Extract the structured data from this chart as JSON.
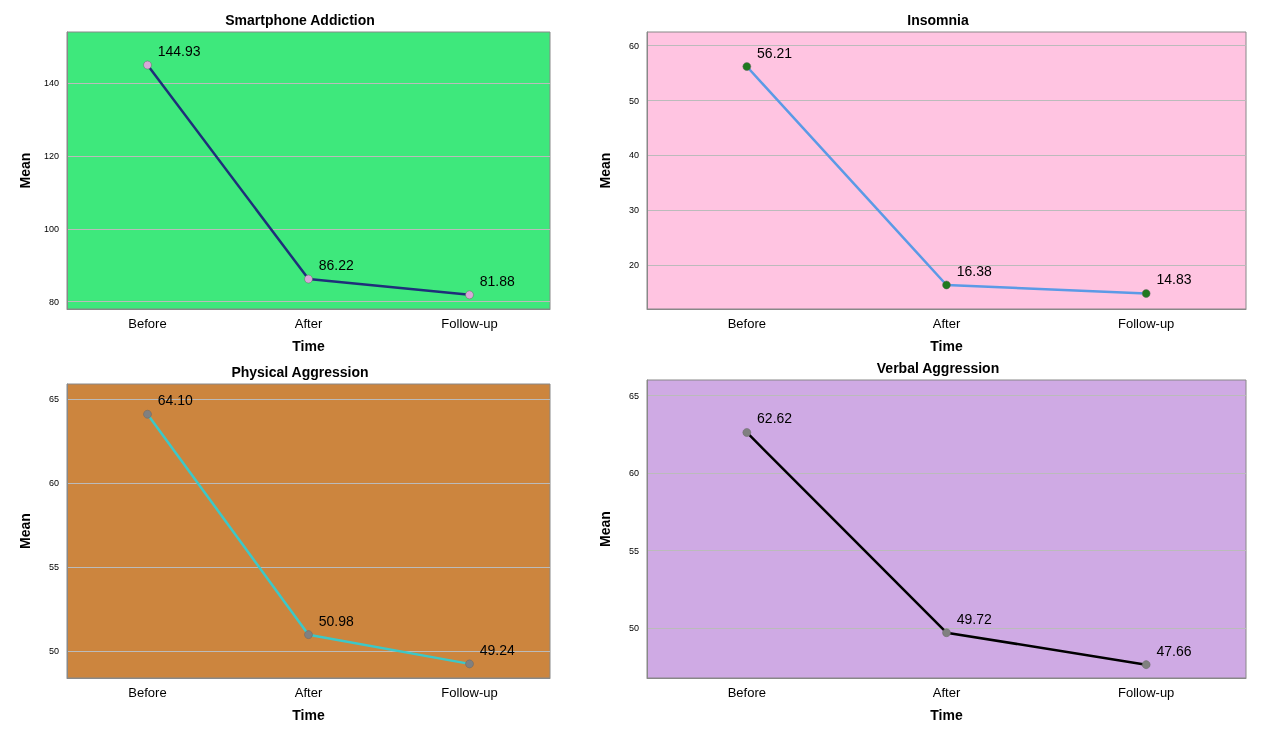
{
  "chart_data": [
    {
      "type": "line",
      "title": "Smartphone Addiction",
      "xlabel": "Time",
      "ylabel": "Mean",
      "categories": [
        "Before",
        "After",
        "Follow-up"
      ],
      "series": [
        {
          "color": "#1f2f7a",
          "colors": [
            "#d8a8d8",
            "#d8a8d8",
            "#d8a8d8"
          ],
          "values": [
            144.93,
            86.22,
            81.88
          ]
        }
      ],
      "ylim": [
        78,
        154
      ],
      "yticks": [
        80,
        100,
        120,
        140
      ],
      "grid": "y",
      "marker": "circle",
      "data_labels": true
    },
    {
      "type": "line",
      "title": "Insomnia",
      "xlabel": "Time",
      "ylabel": "Mean",
      "categories": [
        "Before",
        "After",
        "Follow-up"
      ],
      "series": [
        {
          "color": "#5b9ae6",
          "colors": [
            "#1f7a1f",
            "#1f7a1f",
            "#1f7a1f"
          ],
          "values": [
            56.21,
            16.38,
            14.83
          ]
        }
      ],
      "ylim": [
        12,
        62.5
      ],
      "yticks": [
        20,
        30,
        40,
        50,
        60
      ],
      "grid": "y",
      "marker": "circle",
      "data_labels": true
    },
    {
      "type": "line",
      "title": "Physical Aggression",
      "xlabel": "Time",
      "ylabel": "Mean",
      "categories": [
        "Before",
        "After",
        "Follow-up"
      ],
      "series": [
        {
          "color": "#3cc8c8",
          "colors": [
            "#808080",
            "#808080",
            "#808080"
          ],
          "values": [
            64.1,
            50.98,
            49.24
          ],
          "value_labels": [
            "64.10",
            "50.98",
            "49.24"
          ]
        }
      ],
      "ylim": [
        48.4,
        65.9
      ],
      "yticks": [
        50,
        55,
        60,
        65
      ],
      "grid": "y",
      "marker": "circle"
    },
    {
      "type": "line",
      "title": "Verbal Aggression",
      "xlabel": "Time",
      "ylabel": "Mean",
      "categories": [
        "Before",
        "After",
        "Follow-up"
      ],
      "series": [
        {
          "color": "#000000",
          "colors": [
            "#808080",
            "#808080",
            "#808080"
          ],
          "values": [
            62.62,
            49.72,
            47.66
          ]
        }
      ],
      "ylim": [
        46.8,
        66
      ],
      "yticks": [
        50,
        55,
        60,
        65
      ],
      "grid": "y",
      "marker": "circle",
      "data_labels": true
    }
  ]
}
